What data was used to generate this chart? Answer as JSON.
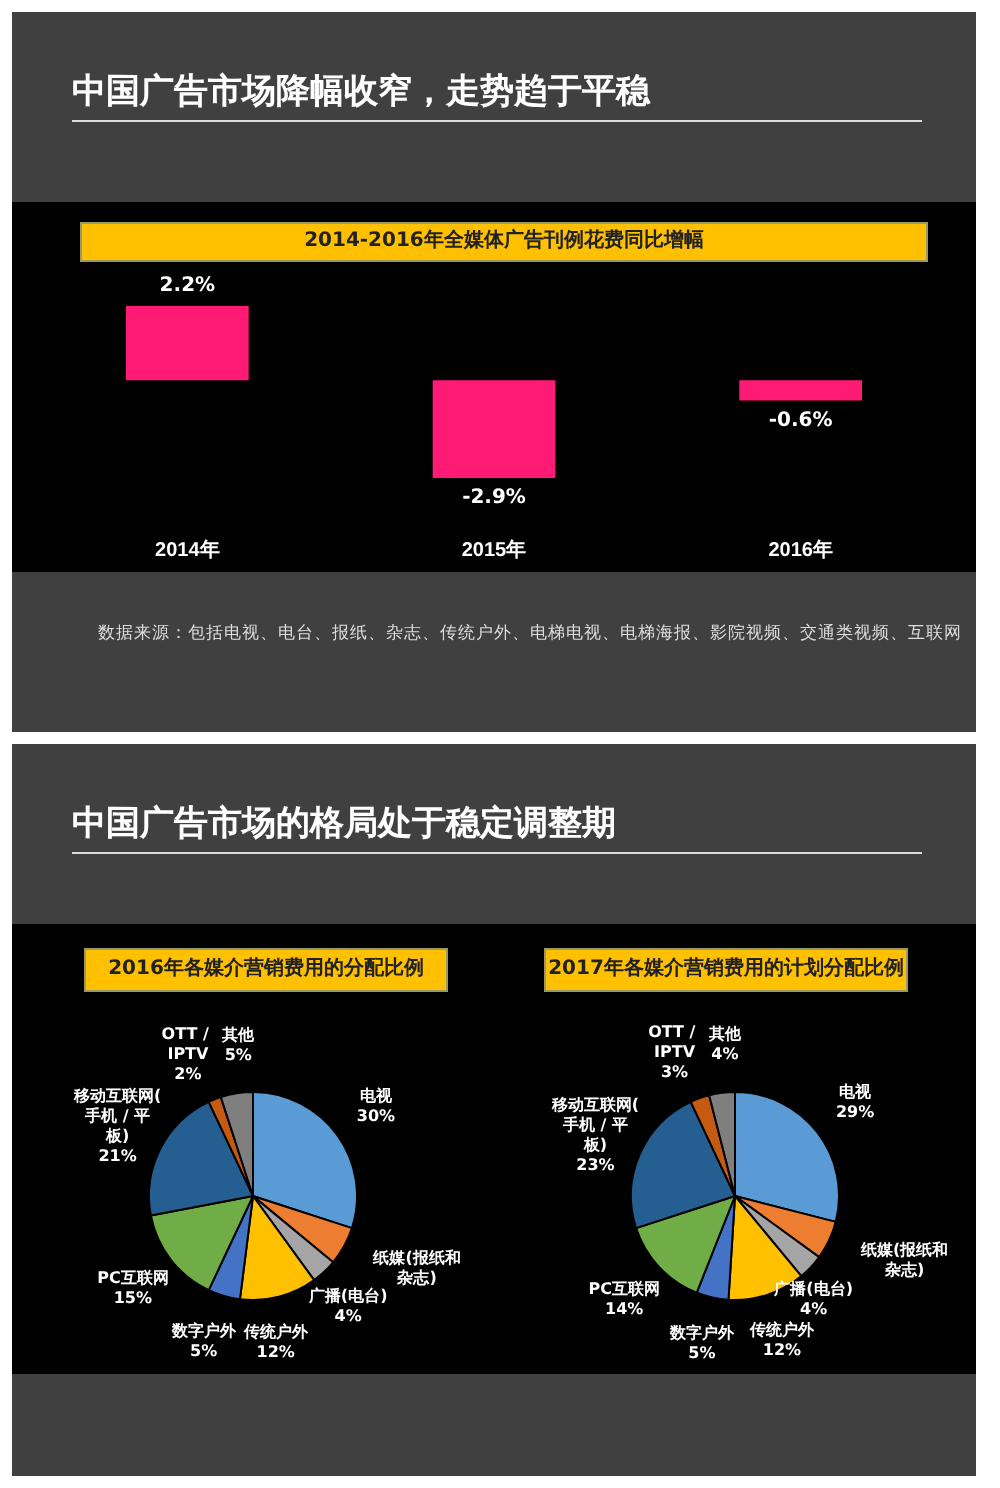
{
  "chart_data": [
    {
      "type": "bar",
      "title": "中国广告市场降幅收窄，走势趋于平稳",
      "subtitle": "2014-2016年全媒体广告刊例花费同比增幅",
      "categories": [
        "2014年",
        "2015年",
        "2016年"
      ],
      "values": [
        2.2,
        -2.9,
        -0.6
      ],
      "value_labels": [
        "2.2%",
        "-2.9%",
        "-0.6%"
      ],
      "color": "#ff1a75",
      "annotations": [
        "数据来源：包括电视、电台、报纸、杂志、传统户外、电梯电视、电梯海报、影院视频、交通类视频、互联网"
      ]
    },
    {
      "type": "pie",
      "title": "中国广告市场的格局处于稳定调整期",
      "subtitle": "2016年各媒介营销费用的分配比例",
      "categories": [
        "电视",
        "纸媒(报纸和杂志)",
        "广播(电台)",
        "传统户外",
        "数字户外",
        "PC互联网",
        "移动互联网(手机 / 平板)",
        "OTT / IPTV",
        "其他"
      ],
      "values": [
        30,
        6,
        4,
        12,
        5,
        15,
        21,
        2,
        5
      ],
      "value_labels": [
        "30%",
        null,
        "4%",
        "12%",
        "5%",
        "15%",
        "21%",
        "2%",
        "5%"
      ],
      "colors": [
        "#5b9bd5",
        "#ed7d31",
        "#a5a5a5",
        "#ffc000",
        "#4472c4",
        "#70ad47",
        "#255e91",
        "#c55a11",
        "#7f7f7f"
      ]
    },
    {
      "type": "pie",
      "title": "2017年各媒介营销费用的计划分配比例",
      "categories": [
        "电视",
        "纸媒(报纸和杂志)",
        "广播(电台)",
        "传统户外",
        "数字户外",
        "PC互联网",
        "移动互联网(手机 / 平板)",
        "OTT / IPTV",
        "其他"
      ],
      "values": [
        29,
        6,
        4,
        12,
        5,
        14,
        23,
        3,
        4
      ],
      "value_labels": [
        "29%",
        null,
        "4%",
        "12%",
        "5%",
        "14%",
        "23%",
        "3%",
        "4%"
      ],
      "colors": [
        "#5b9bd5",
        "#ed7d31",
        "#a5a5a5",
        "#ffc000",
        "#4472c4",
        "#70ad47",
        "#255e91",
        "#c55a11",
        "#7f7f7f"
      ]
    }
  ]
}
